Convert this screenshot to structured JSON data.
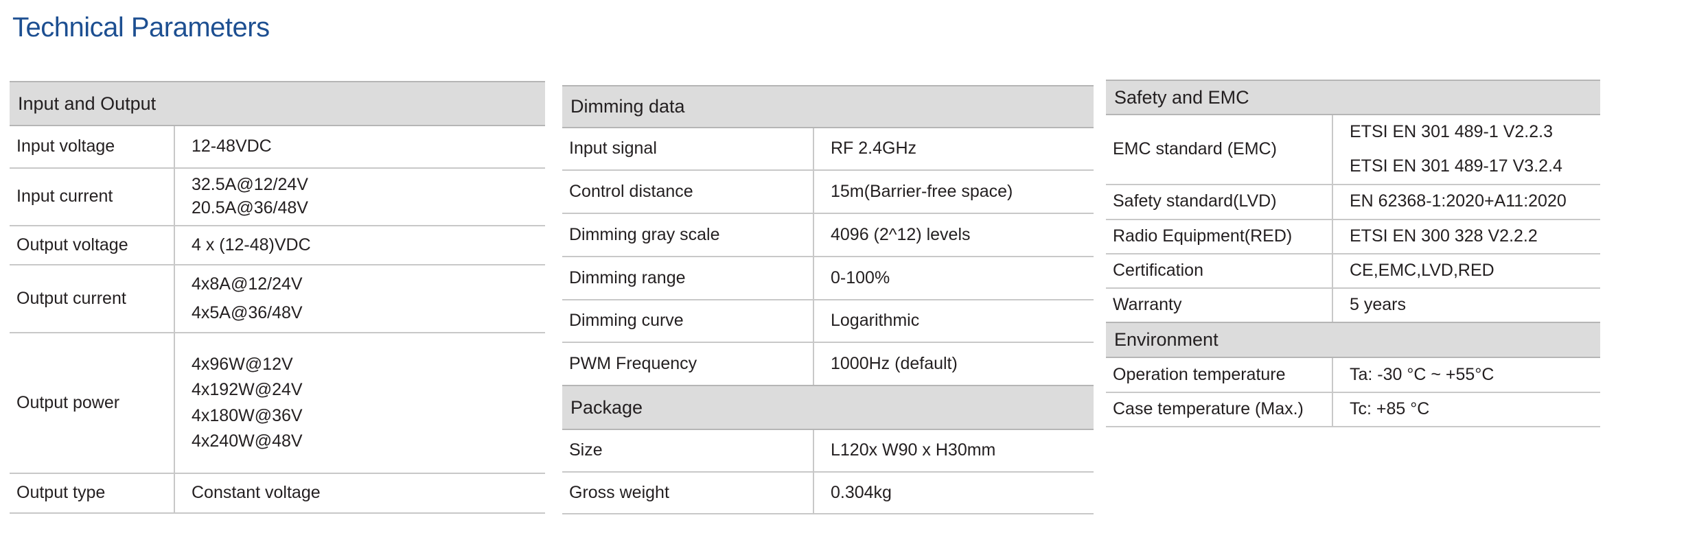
{
  "title": "Technical Parameters",
  "tables": {
    "input_output": {
      "header": "Input and Output",
      "rows": [
        {
          "label": "Input voltage",
          "values": [
            "12-48VDC"
          ]
        },
        {
          "label": "Input current",
          "values": [
            "32.5A@12/24V",
            "20.5A@36/48V"
          ]
        },
        {
          "label": "Output voltage",
          "values": [
            "4 x (12-48)VDC"
          ]
        },
        {
          "label": "Output current",
          "values": [
            "4x8A@12/24V",
            "4x5A@36/48V"
          ]
        },
        {
          "label": "Output power",
          "values": [
            "4x96W@12V",
            "4x192W@24V",
            "4x180W@36V",
            "4x240W@48V"
          ]
        },
        {
          "label": "Output type",
          "values": [
            "Constant voltage"
          ]
        }
      ]
    },
    "dimming": {
      "header": "Dimming data",
      "rows": [
        {
          "label": "Input signal",
          "values": [
            "RF 2.4GHz"
          ]
        },
        {
          "label": "Control distance",
          "values": [
            "15m(Barrier-free space)"
          ]
        },
        {
          "label": "Dimming gray scale",
          "values": [
            "4096 (2^12) levels"
          ]
        },
        {
          "label": "Dimming range",
          "values": [
            "0-100%"
          ]
        },
        {
          "label": "Dimming curve",
          "values": [
            "Logarithmic"
          ]
        },
        {
          "label": "PWM Frequency",
          "values": [
            "1000Hz (default)"
          ]
        }
      ]
    },
    "package": {
      "header": "Package",
      "rows": [
        {
          "label": "Size",
          "values": [
            "L120x W90 x H30mm"
          ]
        },
        {
          "label": "Gross weight",
          "values": [
            "0.304kg"
          ]
        }
      ]
    },
    "safety": {
      "header": "Safety and EMC",
      "rows": [
        {
          "label": "EMC standard (EMC)",
          "values": [
            "ETSI EN 301 489-1 V2.2.3",
            "ETSI EN 301 489-17 V3.2.4"
          ]
        },
        {
          "label": "Safety standard(LVD)",
          "values": [
            "EN 62368-1:2020+A11:2020"
          ]
        },
        {
          "label": "Radio Equipment(RED)",
          "values": [
            "ETSI EN 300 328 V2.2.2"
          ]
        },
        {
          "label": "Certification",
          "values": [
            "CE,EMC,LVD,RED"
          ]
        },
        {
          "label": "Warranty",
          "values": [
            "5 years"
          ]
        }
      ]
    },
    "environment": {
      "header": "Environment",
      "rows": [
        {
          "label": "Operation temperature",
          "values": [
            "Ta: -30 °C ~ +55°C"
          ]
        },
        {
          "label": "Case temperature (Max.)",
          "values": [
            "Tc: +85 °C"
          ]
        }
      ]
    }
  }
}
